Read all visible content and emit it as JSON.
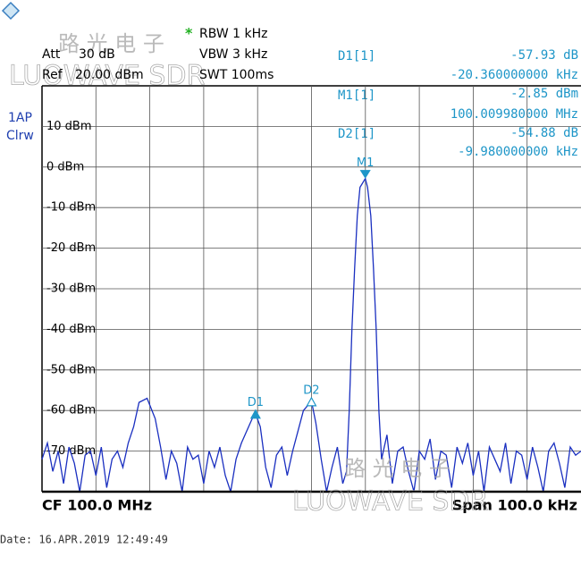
{
  "header": {
    "rbw": "RBW 1 kHz",
    "vbw": "VBW 3 kHz",
    "swt": "SWT 100ms",
    "att_label": "Att",
    "att_value": "30 dB",
    "ref_label": "Ref",
    "ref_value": "20.00 dBm",
    "trace_label": "1AP",
    "trace_mode": "Clrw"
  },
  "marker_table": [
    {
      "name": "D1[1]",
      "level": "-57.93 dB",
      "position": "-20.360000000 kHz"
    },
    {
      "name": "M1[1]",
      "level": "-2.85 dBm",
      "position": "100.009980000 MHz"
    },
    {
      "name": "D2[1]",
      "level": "-54.88 dB",
      "position": "-9.980000000 kHz"
    }
  ],
  "footer": {
    "center": "CF 100.0 MHz",
    "span": "Span 100.0 kHz",
    "date": "Date: 16.APR.2019  12:49:49"
  },
  "watermarks": [
    {
      "cn": "路 光 电 子",
      "en": "LUOWAVE SDR"
    },
    {
      "cn": "路 光 电 子",
      "en": "LUOWAVE SDR"
    }
  ],
  "chart_data": {
    "type": "line",
    "xlim": [
      99.95,
      100.05
    ],
    "ylim": [
      20,
      -80
    ],
    "yticks": [
      {
        "value": 10,
        "label": "10 dBm"
      },
      {
        "value": 0,
        "label": "0 dBm"
      },
      {
        "value": -10,
        "label": "-10 dBm"
      },
      {
        "value": -20,
        "label": "-20 dBm"
      },
      {
        "value": -30,
        "label": "-30 dBm"
      },
      {
        "value": -40,
        "label": "-40 dBm"
      },
      {
        "value": -50,
        "label": "-50 dBm"
      },
      {
        "value": -60,
        "label": "-60 dBm"
      },
      {
        "value": -70,
        "label": "-70 dBm"
      }
    ],
    "grid": true,
    "series": [
      {
        "color": "#1a2fc0",
        "x": [
          99.95,
          99.951,
          99.952,
          99.953,
          99.954,
          99.955,
          99.956,
          99.957,
          99.958,
          99.959,
          99.96,
          99.961,
          99.962,
          99.963,
          99.964,
          99.965,
          99.966,
          99.967,
          99.968,
          99.9695,
          99.971,
          99.972,
          99.973,
          99.974,
          99.975,
          99.976,
          99.977,
          99.978,
          99.979,
          99.98,
          99.981,
          99.982,
          99.983,
          99.984,
          99.985,
          99.986,
          99.987,
          99.988,
          99.989,
          99.98962,
          99.9905,
          99.9915,
          99.9925,
          99.9935,
          99.9945,
          99.9955,
          99.9965,
          99.9975,
          99.9985,
          99.99999,
          100.0008,
          100.0018,
          100.0028,
          100.0038,
          100.0048,
          100.0058,
          100.0065,
          100.007,
          100.0075,
          100.008,
          100.0085,
          100.009,
          100.00998,
          100.0104,
          100.011,
          100.0115,
          100.012,
          100.0125,
          100.013,
          100.014,
          100.015,
          100.016,
          100.017,
          100.018,
          100.019,
          100.02,
          100.021,
          100.022,
          100.023,
          100.024,
          100.025,
          100.026,
          100.027,
          100.028,
          100.029,
          100.03,
          100.031,
          100.032,
          100.033,
          100.034,
          100.035,
          100.036,
          100.037,
          100.038,
          100.039,
          100.04,
          100.041,
          100.042,
          100.043,
          100.044,
          100.045,
          100.046,
          100.047,
          100.048,
          100.049,
          100.05
        ],
        "values": [
          -72,
          -68,
          -75,
          -70,
          -78,
          -69,
          -73,
          -80,
          -71,
          -70,
          -76,
          -69,
          -79,
          -72,
          -70,
          -74,
          -68,
          -64,
          -58,
          -57,
          -62,
          -69,
          -77,
          -70,
          -73,
          -80,
          -69,
          -72,
          -71,
          -78,
          -70,
          -74,
          -69,
          -76,
          -80,
          -72,
          -68,
          -65,
          -62,
          -60.8,
          -64,
          -74,
          -79,
          -71,
          -69,
          -76,
          -70,
          -65,
          -60,
          -57.7,
          -63,
          -72,
          -80,
          -74,
          -69,
          -78,
          -75,
          -60,
          -40,
          -25,
          -12,
          -5,
          -2.85,
          -5,
          -12,
          -25,
          -40,
          -60,
          -72,
          -66,
          -78,
          -70,
          -69,
          -75,
          -80,
          -70,
          -72,
          -67,
          -77,
          -70,
          -71,
          -79,
          -69,
          -73,
          -68,
          -76,
          -70,
          -80,
          -69,
          -72,
          -75,
          -68,
          -78,
          -70,
          -71,
          -77,
          -69,
          -74,
          -80,
          -70,
          -68,
          -73,
          -79,
          -69,
          -71,
          -70
        ]
      }
    ],
    "markers": [
      {
        "label": "M1",
        "x": 100.00998,
        "y": -2.85,
        "style": "down"
      },
      {
        "label": "D1",
        "x": 99.98962,
        "y": -60.78,
        "style": "up-filled"
      },
      {
        "label": "D2",
        "x": 99.99999,
        "y": -57.73,
        "style": "up-open"
      }
    ]
  }
}
